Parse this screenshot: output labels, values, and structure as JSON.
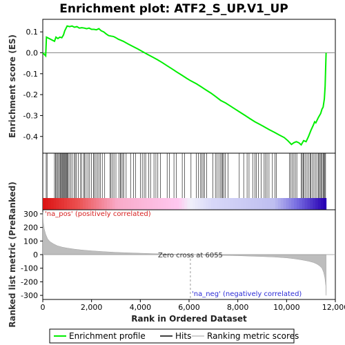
{
  "chart_data": {
    "type": "line",
    "title": "Enrichment plot: ATF2_S_UP.V1_UP",
    "xlabel": "Rank in Ordered Dataset",
    "xlim": [
      0,
      12000
    ],
    "xticks": [
      0,
      2000,
      4000,
      6000,
      8000,
      10000,
      12000
    ],
    "xtick_labels": [
      "0",
      "2,000",
      "4,000",
      "6,000",
      "8,000",
      "10,000",
      "12,000"
    ],
    "es_panel": {
      "ylabel": "Enrichment score (ES)",
      "ylim": [
        -0.48,
        0.16
      ],
      "yticks": [
        0.1,
        0.0,
        -0.1,
        -0.2,
        -0.3,
        -0.4
      ],
      "ytick_labels": [
        "0.1",
        "0.0",
        "-0.1",
        "-0.2",
        "-0.3",
        "-0.4"
      ],
      "series_name": "Enrichment profile",
      "color": "#00ee00",
      "x": [
        0,
        120,
        150,
        480,
        540,
        620,
        700,
        780,
        850,
        900,
        1000,
        1100,
        1200,
        1300,
        1400,
        1500,
        1600,
        1700,
        1800,
        1900,
        2000,
        2100,
        2200,
        2300,
        2400,
        2500,
        2600,
        2700,
        2800,
        2900,
        3000,
        3100,
        3200,
        3300,
        3500,
        3700,
        3900,
        4100,
        4300,
        4500,
        4700,
        4900,
        5100,
        5300,
        5500,
        5700,
        5900,
        6055,
        6300,
        6500,
        6700,
        6900,
        7100,
        7300,
        7500,
        7700,
        7900,
        8100,
        8300,
        8500,
        8700,
        8900,
        9100,
        9300,
        9500,
        9700,
        9900,
        10050,
        10200,
        10300,
        10400,
        10500,
        10600,
        10700,
        10800,
        10900,
        11000,
        11100,
        11150,
        11200,
        11300,
        11400,
        11450,
        11500,
        11550,
        11580,
        11600,
        11620
      ],
      "y": [
        0.0,
        -0.015,
        0.075,
        0.055,
        0.075,
        0.068,
        0.075,
        0.072,
        0.085,
        0.105,
        0.128,
        0.125,
        0.128,
        0.122,
        0.125,
        0.118,
        0.12,
        0.118,
        0.115,
        0.118,
        0.112,
        0.112,
        0.11,
        0.115,
        0.105,
        0.1,
        0.09,
        0.082,
        0.08,
        0.078,
        0.072,
        0.065,
        0.06,
        0.055,
        0.042,
        0.03,
        0.018,
        0.005,
        -0.008,
        -0.02,
        -0.033,
        -0.047,
        -0.062,
        -0.077,
        -0.092,
        -0.107,
        -0.122,
        -0.133,
        -0.148,
        -0.163,
        -0.178,
        -0.193,
        -0.21,
        -0.228,
        -0.24,
        -0.255,
        -0.27,
        -0.285,
        -0.3,
        -0.315,
        -0.33,
        -0.342,
        -0.355,
        -0.368,
        -0.38,
        -0.393,
        -0.405,
        -0.42,
        -0.438,
        -0.43,
        -0.425,
        -0.43,
        -0.44,
        -0.42,
        -0.425,
        -0.4,
        -0.37,
        -0.345,
        -0.33,
        -0.335,
        -0.31,
        -0.29,
        -0.27,
        -0.26,
        -0.22,
        -0.16,
        -0.08,
        0.0
      ]
    },
    "hits_panel": {
      "series_name": "Hits",
      "hit_ranks": [
        140,
        175,
        480,
        520,
        560,
        600,
        640,
        690,
        720,
        760,
        790,
        820,
        850,
        880,
        910,
        940,
        970,
        1000,
        1040,
        1080,
        1150,
        1200,
        1280,
        1330,
        1380,
        1460,
        1540,
        1600,
        1680,
        1720,
        1780,
        1860,
        1920,
        2000,
        2080,
        2120,
        2180,
        2240,
        2300,
        2360,
        2440,
        2540,
        2760,
        2800,
        2860,
        2920,
        3000,
        3120,
        3180,
        3220,
        3280,
        3320,
        3420,
        3600,
        3720,
        3800,
        4000,
        4080,
        4160,
        4220,
        4340,
        4420,
        4560,
        4640,
        4720,
        4820,
        5100,
        5200,
        5380,
        5480,
        5720,
        5820,
        6080,
        6300,
        6380,
        6460,
        6520,
        6580,
        6640,
        6720,
        6980,
        7080,
        7140,
        7220,
        7280,
        7340,
        7380,
        7420,
        7480,
        7600,
        8060,
        8240,
        8380,
        8460,
        8620,
        8700,
        8760,
        8840,
        8960,
        9080,
        9140,
        9200,
        9280,
        9420,
        9520,
        9580,
        10120,
        10180,
        10240,
        10300,
        10360,
        10420,
        10600,
        10640,
        10680,
        10720,
        10780,
        10840,
        10900,
        10960,
        11000,
        11060,
        11120,
        11180,
        11240,
        11300,
        11340,
        11380,
        11420,
        11460,
        11500,
        11540,
        11570,
        11600
      ]
    },
    "metric_panel": {
      "ylabel": "Ranked list metric (PreRanked)",
      "ylim": [
        -330,
        330
      ],
      "yticks": [
        300,
        200,
        100,
        0,
        -100,
        -200,
        -300
      ],
      "ytick_labels": [
        "300",
        "200",
        "100",
        "0",
        "-100",
        "-200",
        "-300"
      ],
      "series_name": "Ranking metric scores",
      "x": [
        0,
        20,
        60,
        120,
        200,
        300,
        450,
        600,
        800,
        1000,
        1300,
        1600,
        2000,
        2500,
        3000,
        3500,
        4000,
        4500,
        5000,
        5500,
        6055,
        6500,
        7000,
        7500,
        8000,
        8500,
        9000,
        9500,
        10000,
        10300,
        10600,
        10900,
        11100,
        11250,
        11350,
        11450,
        11520,
        11570,
        11610,
        11620
      ],
      "y": [
        310,
        240,
        190,
        150,
        115,
        95,
        78,
        65,
        55,
        48,
        40,
        34,
        28,
        22,
        17,
        13,
        10,
        7,
        4,
        2,
        0,
        -2,
        -4,
        -6,
        -8,
        -11,
        -14,
        -18,
        -24,
        -30,
        -38,
        -48,
        -58,
        -70,
        -82,
        -100,
        -130,
        -170,
        -230,
        -300
      ],
      "zero_cross_label": "Zero cross at 6055",
      "zero_cross": 6055,
      "pos_label": "'na_pos' (positively correlated)",
      "neg_label": "'na_neg' (negatively correlated)"
    },
    "legend": {
      "placement": "bottom",
      "entries": [
        "Enrichment profile",
        "Hits",
        "Ranking metric scores"
      ]
    },
    "grid": false
  }
}
